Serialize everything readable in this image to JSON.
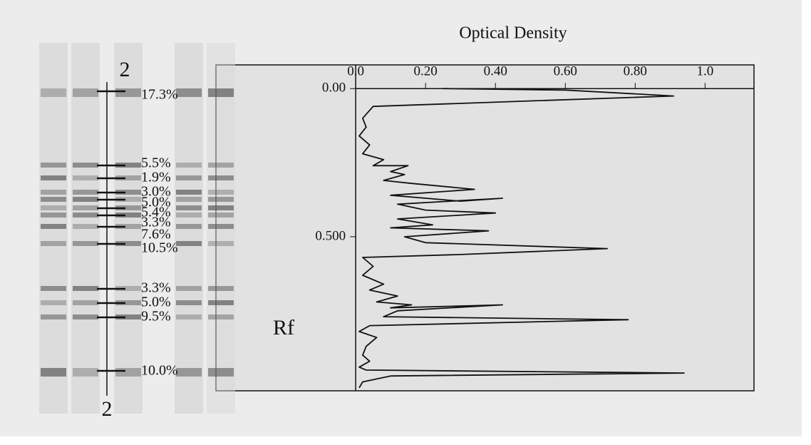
{
  "chart_data": {
    "type": "line",
    "title": "Optical Density",
    "ylabel": "Rf",
    "xlim": [
      -0.4,
      1.14
    ],
    "ylim": [
      -0.08,
      1.02
    ],
    "y_inverted": true,
    "xticks": [
      {
        "value": 0,
        "label": "0.0"
      },
      {
        "value": 0.2,
        "label": "0.20"
      },
      {
        "value": 0.4,
        "label": "0.40"
      },
      {
        "value": 0.6,
        "label": "0.60"
      },
      {
        "value": 0.8,
        "label": "0.80"
      },
      {
        "value": 1.0,
        "label": "1.0"
      }
    ],
    "yticks": [
      {
        "value": 0,
        "label": "0.00"
      },
      {
        "value": 0.5,
        "label": "0.500"
      }
    ],
    "color": "#111111",
    "x": [
      0.25,
      0.6,
      0.91,
      0.05,
      0.02,
      0.03,
      0.01,
      0.04,
      0.02,
      0.08,
      0.05,
      0.15,
      0.1,
      0.14,
      0.08,
      0.16,
      0.34,
      0.1,
      0.3,
      0.42,
      0.12,
      0.2,
      0.4,
      0.12,
      0.22,
      0.1,
      0.38,
      0.14,
      0.2,
      0.72,
      0.3,
      0.02,
      0.05,
      0.02,
      0.08,
      0.04,
      0.12,
      0.06,
      0.16,
      0.1,
      0.42,
      0.12,
      0.08,
      0.78,
      0.04,
      0.01,
      0.06,
      0.03,
      0.02,
      0.04,
      0.01,
      0.03,
      0.94,
      0.1,
      0.02,
      0.01
    ],
    "values": [
      0.0,
      0.005,
      0.025,
      0.06,
      0.1,
      0.13,
      0.16,
      0.19,
      0.22,
      0.24,
      0.26,
      0.26,
      0.28,
      0.29,
      0.31,
      0.32,
      0.34,
      0.36,
      0.38,
      0.37,
      0.39,
      0.41,
      0.42,
      0.44,
      0.46,
      0.47,
      0.48,
      0.5,
      0.52,
      0.54,
      0.56,
      0.57,
      0.6,
      0.63,
      0.66,
      0.68,
      0.7,
      0.72,
      0.73,
      0.74,
      0.73,
      0.75,
      0.77,
      0.78,
      0.8,
      0.82,
      0.84,
      0.87,
      0.9,
      0.92,
      0.94,
      0.95,
      0.96,
      0.97,
      0.99,
      1.01
    ],
    "lane_labels": [
      "2",
      "2"
    ],
    "gel_labels": [
      "17.3%",
      "5.5%",
      "1.9%",
      "3.0%",
      "5.0%",
      "5.4%",
      "3.3%",
      "7.6%",
      "10.5%",
      "3.3%",
      "5.0%",
      "9.5%",
      "10.0%"
    ]
  }
}
